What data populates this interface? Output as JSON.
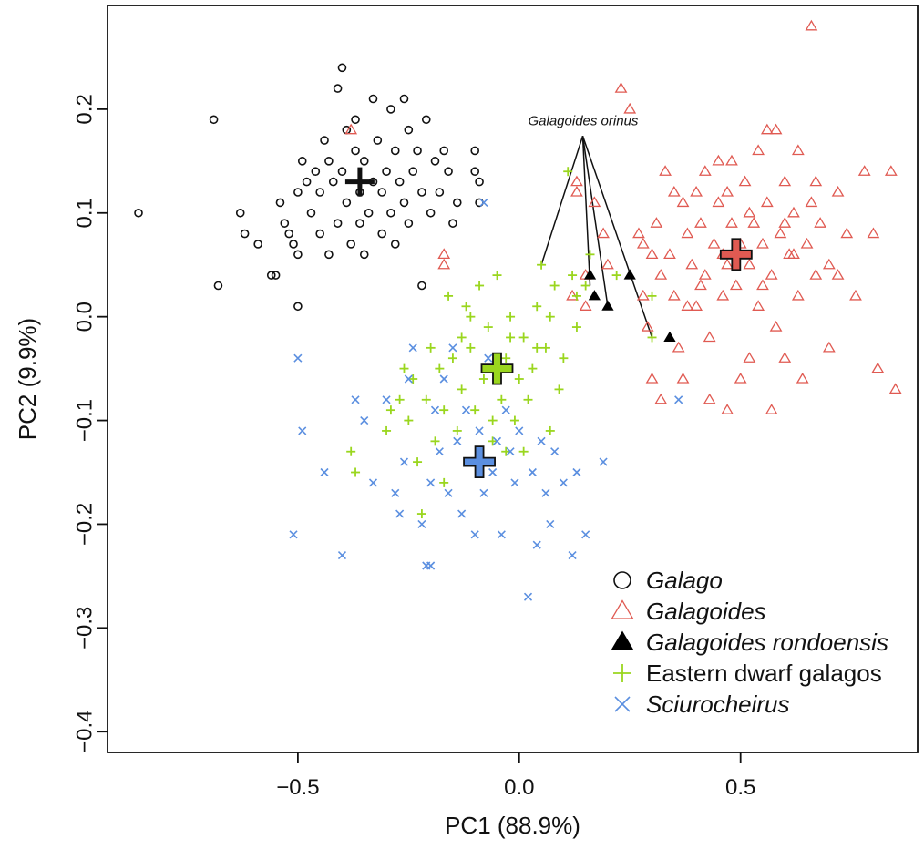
{
  "chart_data": {
    "type": "scatter",
    "title": "",
    "xlabel": "PC1 (88.9%)",
    "ylabel": "PC2 (9.9%)",
    "xlim": [
      -0.93,
      0.9
    ],
    "ylim": [
      -0.42,
      0.3
    ],
    "x_ticks": [
      -0.5,
      0.0,
      0.5
    ],
    "x_tick_labels": [
      "−0.5",
      "0.0",
      "0.5"
    ],
    "y_ticks": [
      -0.4,
      -0.3,
      -0.2,
      -0.1,
      0.0,
      0.1,
      0.2
    ],
    "y_tick_labels": [
      "−0.4",
      "−0.3",
      "−0.2",
      "−0.1",
      "0.0",
      "0.1",
      "0.2"
    ],
    "grid": false,
    "legend_position": "bottom-right",
    "annotation": {
      "label": "Galagoides orinus",
      "anchor": [
        0.02,
        0.19
      ],
      "targets": [
        [
          0.05,
          0.05
        ],
        [
          0.16,
          0.03
        ],
        [
          0.2,
          0.01
        ],
        [
          0.3,
          -0.02
        ]
      ]
    },
    "series": [
      {
        "name": "Galago",
        "marker": "circle",
        "color": "#111111",
        "italic": true,
        "centroid": [
          -0.36,
          0.13
        ],
        "points": [
          [
            -0.86,
            0.1
          ],
          [
            -0.69,
            0.19
          ],
          [
            -0.68,
            0.03
          ],
          [
            -0.63,
            0.1
          ],
          [
            -0.59,
            0.07
          ],
          [
            -0.56,
            0.04
          ],
          [
            -0.55,
            0.04
          ],
          [
            -0.54,
            0.11
          ],
          [
            -0.53,
            0.09
          ],
          [
            -0.52,
            0.08
          ],
          [
            -0.51,
            0.07
          ],
          [
            -0.5,
            0.06
          ],
          [
            -0.5,
            0.12
          ],
          [
            -0.49,
            0.15
          ],
          [
            -0.48,
            0.13
          ],
          [
            -0.47,
            0.1
          ],
          [
            -0.46,
            0.14
          ],
          [
            -0.45,
            0.12
          ],
          [
            -0.45,
            0.08
          ],
          [
            -0.44,
            0.17
          ],
          [
            -0.43,
            0.15
          ],
          [
            -0.43,
            0.06
          ],
          [
            -0.42,
            0.13
          ],
          [
            -0.41,
            0.22
          ],
          [
            -0.41,
            0.09
          ],
          [
            -0.4,
            0.24
          ],
          [
            -0.4,
            0.14
          ],
          [
            -0.39,
            0.18
          ],
          [
            -0.39,
            0.11
          ],
          [
            -0.38,
            0.07
          ],
          [
            -0.37,
            0.16
          ],
          [
            -0.37,
            0.19
          ],
          [
            -0.36,
            0.09
          ],
          [
            -0.36,
            0.12
          ],
          [
            -0.35,
            0.15
          ],
          [
            -0.35,
            0.06
          ],
          [
            -0.34,
            0.1
          ],
          [
            -0.33,
            0.21
          ],
          [
            -0.33,
            0.13
          ],
          [
            -0.32,
            0.17
          ],
          [
            -0.31,
            0.08
          ],
          [
            -0.31,
            0.12
          ],
          [
            -0.3,
            0.14
          ],
          [
            -0.29,
            0.2
          ],
          [
            -0.29,
            0.1
          ],
          [
            -0.28,
            0.07
          ],
          [
            -0.28,
            0.16
          ],
          [
            -0.27,
            0.13
          ],
          [
            -0.26,
            0.21
          ],
          [
            -0.26,
            0.11
          ],
          [
            -0.25,
            0.18
          ],
          [
            -0.25,
            0.09
          ],
          [
            -0.24,
            0.14
          ],
          [
            -0.23,
            0.16
          ],
          [
            -0.22,
            0.12
          ],
          [
            -0.22,
            0.03
          ],
          [
            -0.21,
            0.19
          ],
          [
            -0.2,
            0.1
          ],
          [
            -0.19,
            0.15
          ],
          [
            -0.18,
            0.12
          ],
          [
            -0.17,
            0.16
          ],
          [
            -0.16,
            0.14
          ],
          [
            -0.15,
            0.09
          ],
          [
            -0.14,
            0.11
          ],
          [
            -0.1,
            0.16
          ],
          [
            -0.1,
            0.14
          ],
          [
            -0.09,
            0.13
          ],
          [
            -0.09,
            0.11
          ],
          [
            -0.5,
            0.01
          ],
          [
            -0.62,
            0.08
          ]
        ]
      },
      {
        "name": "Galagoides",
        "marker": "triangle",
        "color": "#e05a52",
        "italic": true,
        "centroid": [
          0.49,
          0.06
        ],
        "points": [
          [
            -0.38,
            0.18
          ],
          [
            -0.17,
            0.05
          ],
          [
            -0.17,
            0.06
          ],
          [
            0.12,
            0.02
          ],
          [
            0.13,
            0.13
          ],
          [
            0.13,
            0.12
          ],
          [
            0.15,
            0.04
          ],
          [
            0.15,
            0.01
          ],
          [
            0.17,
            0.11
          ],
          [
            0.19,
            0.08
          ],
          [
            0.2,
            0.05
          ],
          [
            0.23,
            0.22
          ],
          [
            0.25,
            0.2
          ],
          [
            0.27,
            0.08
          ],
          [
            0.28,
            0.07
          ],
          [
            0.28,
            0.02
          ],
          [
            0.29,
            -0.01
          ],
          [
            0.3,
            0.06
          ],
          [
            0.31,
            0.09
          ],
          [
            0.32,
            0.04
          ],
          [
            0.33,
            0.14
          ],
          [
            0.34,
            0.06
          ],
          [
            0.35,
            0.12
          ],
          [
            0.35,
            0.02
          ],
          [
            0.36,
            -0.03
          ],
          [
            0.37,
            0.11
          ],
          [
            0.38,
            0.08
          ],
          [
            0.39,
            0.05
          ],
          [
            0.4,
            0.12
          ],
          [
            0.4,
            0.01
          ],
          [
            0.41,
            0.09
          ],
          [
            0.42,
            0.14
          ],
          [
            0.42,
            0.04
          ],
          [
            0.43,
            -0.02
          ],
          [
            0.44,
            0.07
          ],
          [
            0.45,
            0.11
          ],
          [
            0.46,
            0.02
          ],
          [
            0.47,
            0.05
          ],
          [
            0.48,
            0.09
          ],
          [
            0.48,
            0.15
          ],
          [
            0.49,
            0.03
          ],
          [
            0.5,
            0.07
          ],
          [
            0.51,
            0.13
          ],
          [
            0.52,
            0.05
          ],
          [
            0.52,
            -0.04
          ],
          [
            0.53,
            0.09
          ],
          [
            0.54,
            0.16
          ],
          [
            0.54,
            0.01
          ],
          [
            0.55,
            0.07
          ],
          [
            0.56,
            0.11
          ],
          [
            0.56,
            0.18
          ],
          [
            0.57,
            0.04
          ],
          [
            0.58,
            -0.01
          ],
          [
            0.59,
            0.08
          ],
          [
            0.6,
            0.13
          ],
          [
            0.61,
            0.06
          ],
          [
            0.62,
            0.1
          ],
          [
            0.63,
            0.02
          ],
          [
            0.64,
            -0.06
          ],
          [
            0.65,
            0.07
          ],
          [
            0.66,
            0.11
          ],
          [
            0.67,
            0.04
          ],
          [
            0.68,
            0.09
          ],
          [
            0.7,
            0.05
          ],
          [
            0.72,
            0.12
          ],
          [
            0.74,
            0.08
          ],
          [
            0.76,
            0.02
          ],
          [
            0.78,
            0.14
          ],
          [
            0.8,
            0.08
          ],
          [
            0.81,
            -0.05
          ],
          [
            0.84,
            0.14
          ],
          [
            0.85,
            -0.07
          ],
          [
            0.66,
            0.28
          ],
          [
            0.57,
            -0.09
          ],
          [
            0.47,
            -0.09
          ],
          [
            0.5,
            -0.06
          ],
          [
            0.43,
            -0.08
          ],
          [
            0.37,
            -0.06
          ],
          [
            0.3,
            -0.06
          ],
          [
            0.6,
            -0.04
          ],
          [
            0.7,
            -0.03
          ],
          [
            0.32,
            -0.08
          ],
          [
            0.45,
            0.15
          ],
          [
            0.58,
            0.18
          ],
          [
            0.63,
            0.16
          ],
          [
            0.52,
            0.1
          ],
          [
            0.46,
            0.06
          ],
          [
            0.55,
            0.03
          ],
          [
            0.62,
            0.06
          ],
          [
            0.41,
            0.03
          ],
          [
            0.38,
            0.01
          ],
          [
            0.47,
            0.12
          ],
          [
            0.6,
            0.09
          ],
          [
            0.67,
            0.13
          ],
          [
            0.72,
            0.04
          ]
        ]
      },
      {
        "name": "Galagoides rondoensis",
        "marker": "triangle-filled",
        "color": "#000000",
        "italic": true,
        "points": [
          [
            0.16,
            0.04
          ],
          [
            0.17,
            0.02
          ],
          [
            0.2,
            0.01
          ],
          [
            0.25,
            0.04
          ],
          [
            0.34,
            -0.02
          ]
        ]
      },
      {
        "name": "Eastern dwarf galagos",
        "marker": "plus",
        "color": "#9ad61e",
        "italic": false,
        "centroid": [
          -0.05,
          -0.05
        ],
        "points": [
          [
            -0.38,
            -0.13
          ],
          [
            -0.37,
            -0.15
          ],
          [
            -0.3,
            -0.11
          ],
          [
            -0.29,
            -0.09
          ],
          [
            -0.27,
            -0.08
          ],
          [
            -0.26,
            -0.05
          ],
          [
            -0.25,
            -0.1
          ],
          [
            -0.24,
            -0.06
          ],
          [
            -0.23,
            -0.14
          ],
          [
            -0.22,
            -0.19
          ],
          [
            -0.21,
            -0.08
          ],
          [
            -0.2,
            -0.03
          ],
          [
            -0.19,
            -0.12
          ],
          [
            -0.18,
            -0.05
          ],
          [
            -0.17,
            -0.09
          ],
          [
            -0.16,
            0.02
          ],
          [
            -0.15,
            -0.04
          ],
          [
            -0.14,
            -0.11
          ],
          [
            -0.13,
            -0.07
          ],
          [
            -0.12,
            0.01
          ],
          [
            -0.11,
            -0.03
          ],
          [
            -0.1,
            -0.09
          ],
          [
            -0.09,
            0.03
          ],
          [
            -0.08,
            -0.06
          ],
          [
            -0.07,
            -0.01
          ],
          [
            -0.06,
            -0.12
          ],
          [
            -0.05,
            0.04
          ],
          [
            -0.04,
            -0.08
          ],
          [
            -0.03,
            -0.04
          ],
          [
            -0.02,
            0.0
          ],
          [
            -0.01,
            -0.1
          ],
          [
            0.0,
            -0.06
          ],
          [
            0.01,
            -0.02
          ],
          [
            0.02,
            -0.08
          ],
          [
            0.03,
            -0.05
          ],
          [
            0.04,
            0.01
          ],
          [
            0.05,
            0.05
          ],
          [
            0.06,
            -0.03
          ],
          [
            0.07,
            -0.11
          ],
          [
            0.08,
            0.03
          ],
          [
            0.09,
            -0.07
          ],
          [
            0.1,
            -0.04
          ],
          [
            0.11,
            0.14
          ],
          [
            0.12,
            0.04
          ],
          [
            0.13,
            -0.01
          ],
          [
            0.15,
            0.03
          ],
          [
            0.16,
            0.06
          ],
          [
            0.22,
            0.04
          ],
          [
            0.3,
            0.02
          ],
          [
            0.3,
            -0.02
          ],
          [
            -0.06,
            -0.1
          ],
          [
            -0.03,
            -0.13
          ],
          [
            -0.09,
            -0.15
          ],
          [
            -0.13,
            -0.02
          ],
          [
            -0.17,
            -0.16
          ],
          [
            0.01,
            -0.13
          ],
          [
            0.04,
            -0.03
          ],
          [
            0.07,
            0.0
          ],
          [
            -0.02,
            -0.02
          ],
          [
            -0.11,
            0.0
          ],
          [
            0.13,
            0.02
          ]
        ]
      },
      {
        "name": "Sciurocheirus",
        "marker": "cross",
        "color": "#5b8fe0",
        "italic": true,
        "centroid": [
          -0.09,
          -0.14
        ],
        "points": [
          [
            -0.5,
            -0.04
          ],
          [
            -0.51,
            -0.21
          ],
          [
            -0.49,
            -0.11
          ],
          [
            -0.44,
            -0.15
          ],
          [
            -0.4,
            -0.23
          ],
          [
            -0.37,
            -0.08
          ],
          [
            -0.35,
            -0.1
          ],
          [
            -0.3,
            -0.08
          ],
          [
            -0.28,
            -0.17
          ],
          [
            -0.27,
            -0.19
          ],
          [
            -0.26,
            -0.14
          ],
          [
            -0.25,
            -0.06
          ],
          [
            -0.24,
            -0.03
          ],
          [
            -0.22,
            -0.2
          ],
          [
            -0.21,
            -0.24
          ],
          [
            -0.2,
            -0.16
          ],
          [
            -0.19,
            -0.09
          ],
          [
            -0.18,
            -0.13
          ],
          [
            -0.17,
            -0.06
          ],
          [
            -0.16,
            -0.17
          ],
          [
            -0.15,
            -0.03
          ],
          [
            -0.14,
            -0.12
          ],
          [
            -0.13,
            -0.19
          ],
          [
            -0.12,
            -0.09
          ],
          [
            -0.11,
            -0.14
          ],
          [
            -0.1,
            -0.21
          ],
          [
            -0.09,
            -0.11
          ],
          [
            -0.08,
            -0.17
          ],
          [
            -0.07,
            -0.04
          ],
          [
            -0.06,
            -0.15
          ],
          [
            -0.05,
            -0.12
          ],
          [
            -0.04,
            -0.21
          ],
          [
            -0.03,
            -0.09
          ],
          [
            -0.02,
            -0.13
          ],
          [
            -0.01,
            -0.16
          ],
          [
            0.0,
            -0.11
          ],
          [
            0.02,
            -0.27
          ],
          [
            0.03,
            -0.15
          ],
          [
            0.04,
            -0.22
          ],
          [
            0.05,
            -0.12
          ],
          [
            0.06,
            -0.17
          ],
          [
            0.07,
            -0.2
          ],
          [
            0.08,
            -0.13
          ],
          [
            0.1,
            -0.16
          ],
          [
            0.12,
            -0.23
          ],
          [
            0.13,
            -0.15
          ],
          [
            0.15,
            -0.21
          ],
          [
            0.19,
            -0.14
          ],
          [
            -0.08,
            0.11
          ],
          [
            0.36,
            -0.08
          ],
          [
            -0.2,
            -0.24
          ],
          [
            -0.33,
            -0.16
          ]
        ]
      }
    ]
  }
}
